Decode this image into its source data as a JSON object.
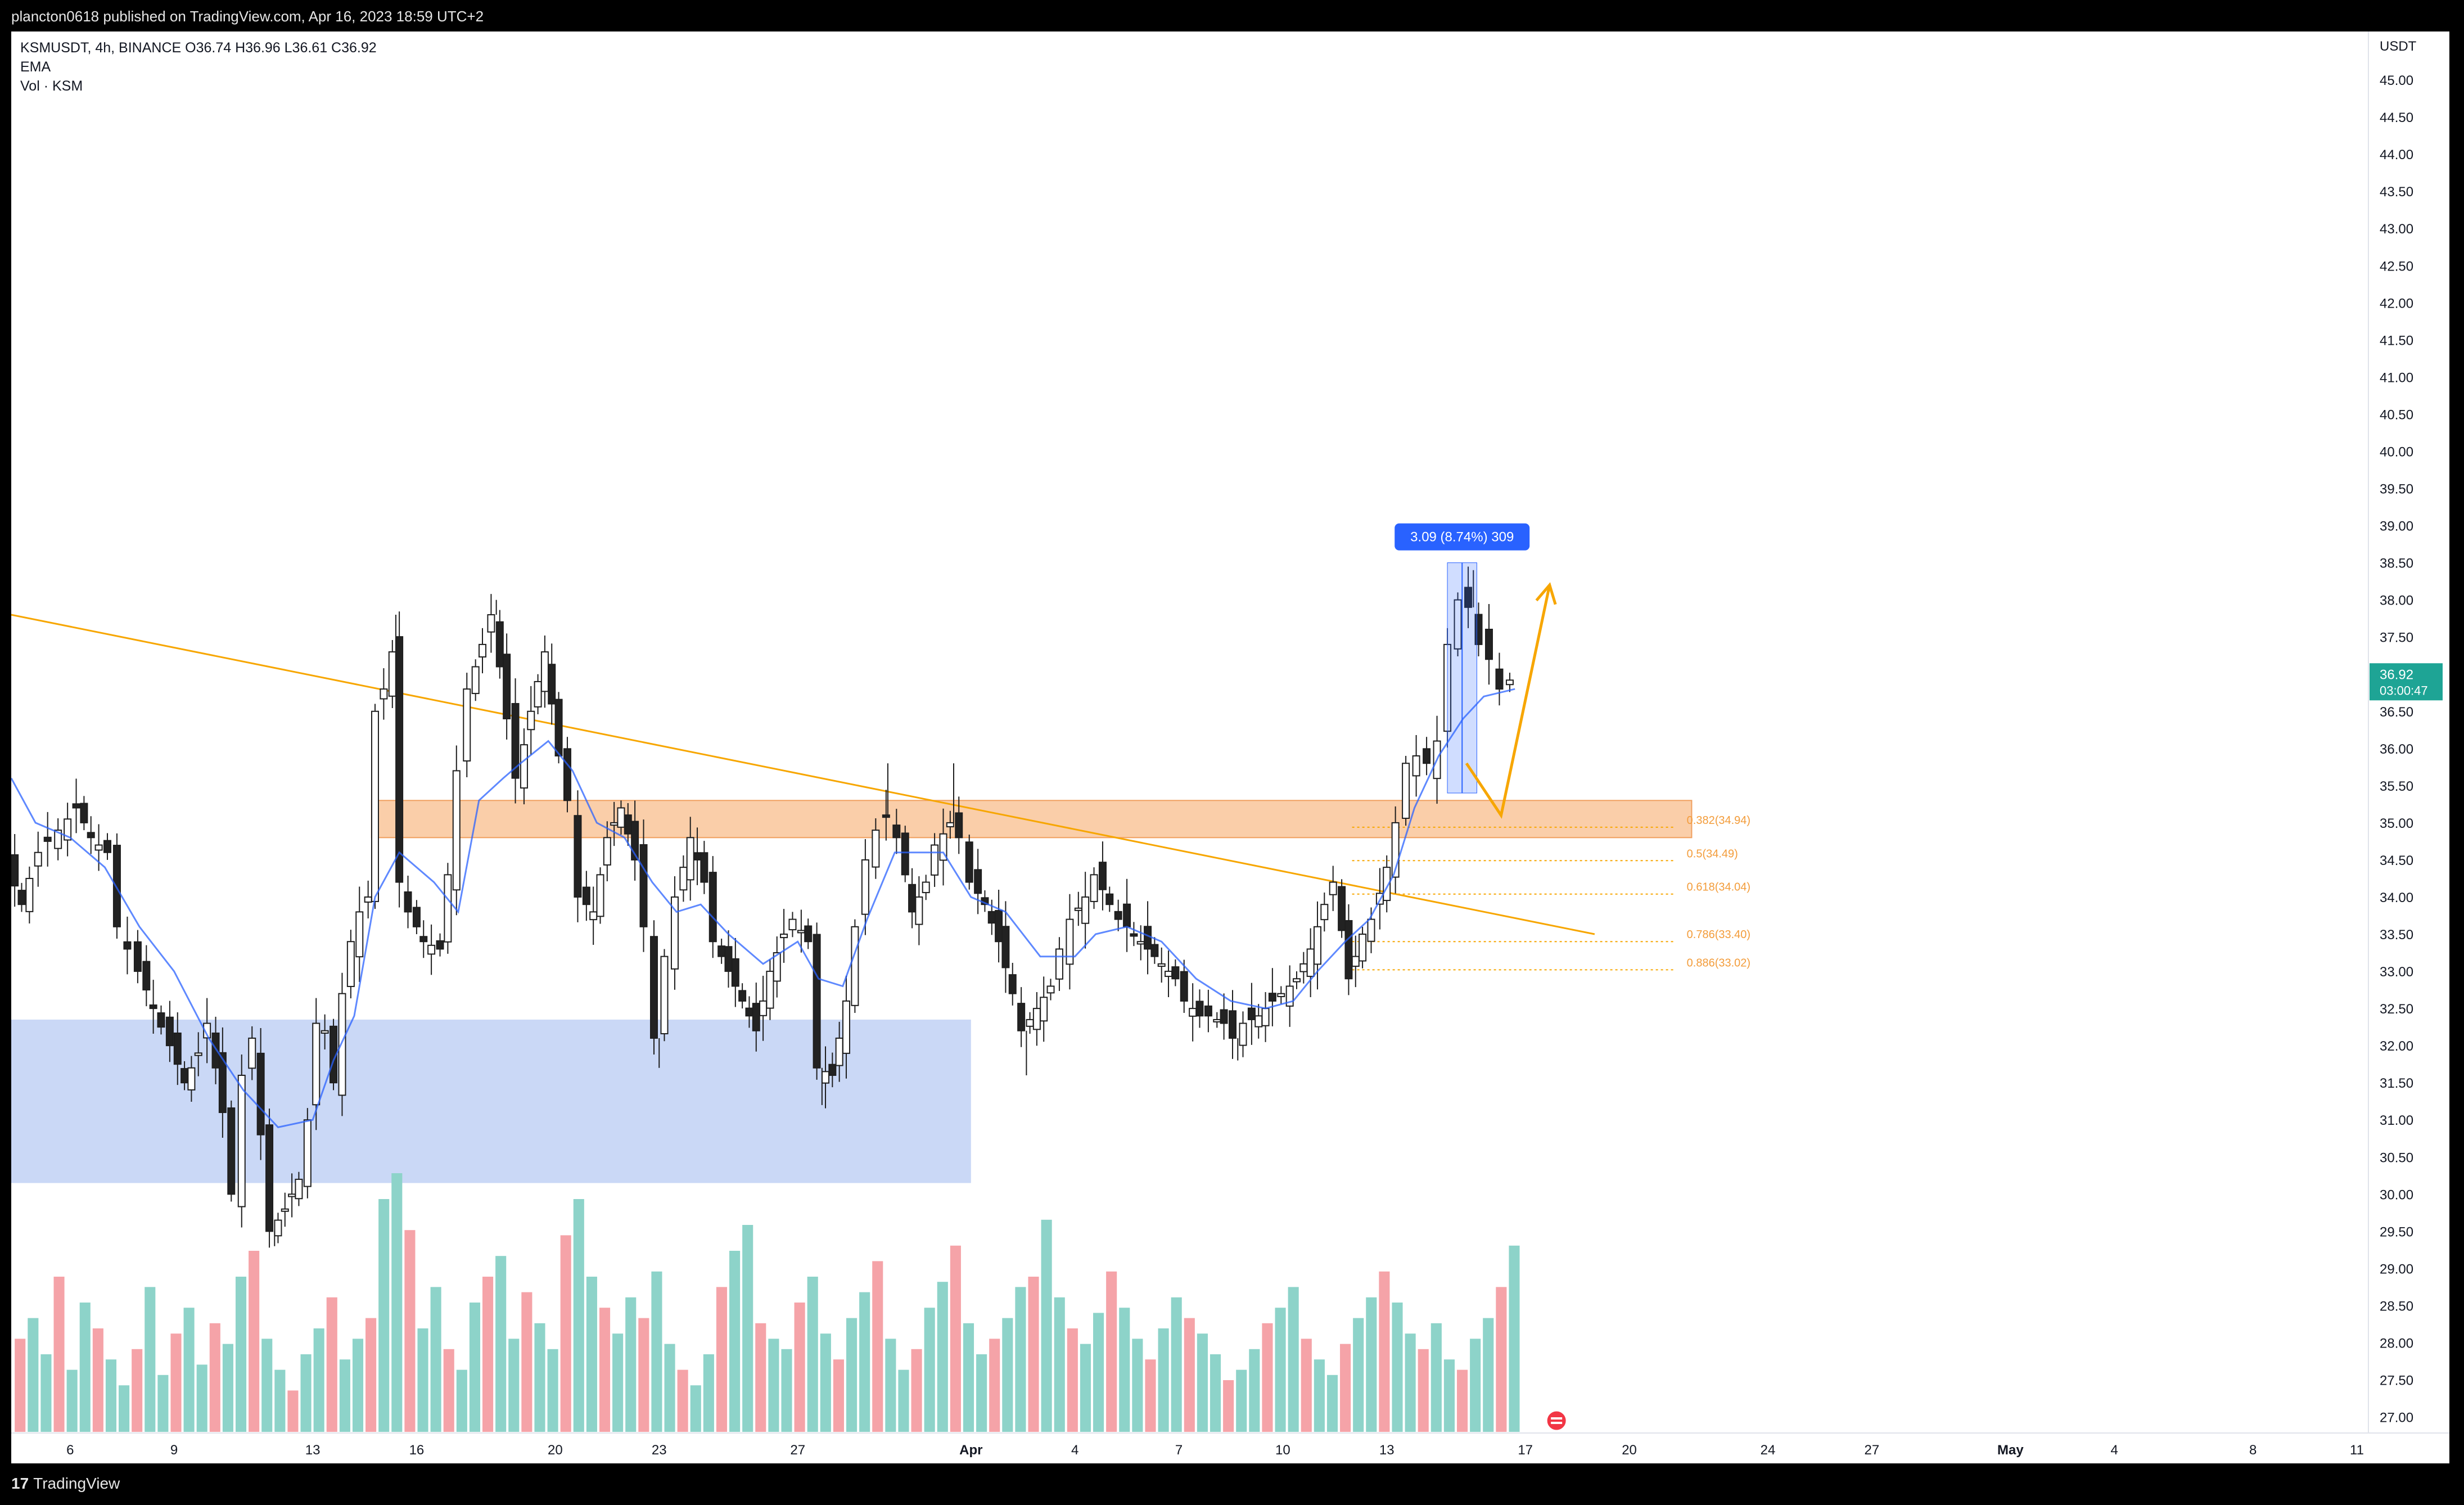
{
  "header": {
    "publish_text": "plancton0618 published on TradingView.com, Apr 16, 2023 18:59 UTC+2"
  },
  "legend": {
    "symbol_line": "KSMUSDT, 4h, BINANCE  O36.74  H36.96  L36.61  C36.92",
    "ema_label": "EMA",
    "vol_label": "Vol · KSM"
  },
  "footer": {
    "logo_text": "TradingView",
    "logo_mark": "17"
  },
  "colors": {
    "up": "#22ab94",
    "down": "#f23645",
    "vol_up": "#8dd3c9",
    "vol_down": "#f5a3a8",
    "ema": "#2962ff",
    "trend": "#f7a600",
    "zone_orange": "#f9c69a",
    "zone_blue": "#b3c8f2",
    "price_tag": "#1ea495"
  },
  "chart_data": {
    "type": "candlestick",
    "symbol": "KSMUSDT",
    "timeframe": "4h",
    "exchange": "BINANCE",
    "last_price": {
      "value": 36.92,
      "label": "36.92",
      "countdown": "03:00:47"
    },
    "y_axis": {
      "unit_label": "USDT",
      "range": [
        26.8,
        45.5
      ],
      "ticks": [
        "45.00",
        "44.50",
        "44.00",
        "43.50",
        "43.00",
        "42.50",
        "42.00",
        "41.50",
        "41.00",
        "40.50",
        "40.00",
        "39.50",
        "39.00",
        "38.50",
        "38.00",
        "37.50",
        "37.00",
        "36.50",
        "36.00",
        "35.50",
        "35.00",
        "34.50",
        "34.00",
        "33.50",
        "33.00",
        "32.50",
        "32.00",
        "31.50",
        "31.00",
        "30.50",
        "30.00",
        "29.50",
        "29.00",
        "28.50",
        "28.00",
        "27.50",
        "27.00"
      ]
    },
    "x_axis": {
      "ticks": [
        {
          "label": "6",
          "day": 6
        },
        {
          "label": "9",
          "day": 9
        },
        {
          "label": "13",
          "day": 13
        },
        {
          "label": "16",
          "day": 16
        },
        {
          "label": "20",
          "day": 20
        },
        {
          "label": "23",
          "day": 23
        },
        {
          "label": "27",
          "day": 27
        },
        {
          "label": "Apr",
          "day": 32
        },
        {
          "label": "4",
          "day": 35
        },
        {
          "label": "7",
          "day": 38
        },
        {
          "label": "10",
          "day": 41
        },
        {
          "label": "13",
          "day": 44
        },
        {
          "label": "17",
          "day": 48
        },
        {
          "label": "20",
          "day": 51
        },
        {
          "label": "24",
          "day": 55
        },
        {
          "label": "27",
          "day": 58
        },
        {
          "label": "May",
          "day": 62
        },
        {
          "label": "4",
          "day": 65
        },
        {
          "label": "8",
          "day": 69
        },
        {
          "label": "11",
          "day": 72
        }
      ],
      "day_range": [
        4.3,
        72.3
      ]
    },
    "price_path": [
      [
        4.3,
        34.4
      ],
      [
        4.7,
        33.9
      ],
      [
        5.2,
        34.6
      ],
      [
        5.8,
        34.9
      ],
      [
        6.3,
        35.2
      ],
      [
        6.7,
        34.8
      ],
      [
        7.2,
        34.6
      ],
      [
        7.5,
        33.6
      ],
      [
        8.1,
        33.0
      ],
      [
        8.5,
        32.5
      ],
      [
        9.0,
        32.0
      ],
      [
        9.4,
        31.5
      ],
      [
        9.8,
        31.9
      ],
      [
        10.1,
        32.3
      ],
      [
        10.5,
        31.1
      ],
      [
        10.8,
        30.0
      ],
      [
        11.1,
        31.6
      ],
      [
        11.4,
        32.1
      ],
      [
        11.6,
        30.8
      ],
      [
        11.9,
        29.5
      ],
      [
        12.3,
        29.8
      ],
      [
        12.7,
        30.2
      ],
      [
        13.0,
        31.0
      ],
      [
        13.2,
        32.3
      ],
      [
        13.5,
        32.2
      ],
      [
        13.7,
        31.5
      ],
      [
        14.0,
        32.7
      ],
      [
        14.2,
        33.4
      ],
      [
        14.5,
        33.8
      ],
      [
        14.7,
        34.0
      ],
      [
        14.9,
        36.5
      ],
      [
        15.2,
        36.8
      ],
      [
        15.4,
        37.3
      ],
      [
        15.6,
        34.2
      ],
      [
        15.9,
        33.8
      ],
      [
        16.3,
        33.4
      ],
      [
        16.8,
        33.3
      ],
      [
        17.0,
        34.3
      ],
      [
        17.3,
        35.7
      ],
      [
        17.6,
        36.8
      ],
      [
        18.0,
        37.4
      ],
      [
        18.3,
        37.8
      ],
      [
        18.7,
        36.4
      ],
      [
        19.0,
        35.6
      ],
      [
        19.4,
        36.5
      ],
      [
        19.8,
        37.3
      ],
      [
        20.2,
        35.9
      ],
      [
        20.5,
        35.3
      ],
      [
        20.8,
        34.0
      ],
      [
        21.2,
        33.8
      ],
      [
        21.6,
        34.8
      ],
      [
        22.0,
        35.2
      ],
      [
        22.4,
        34.5
      ],
      [
        22.7,
        33.6
      ],
      [
        23.0,
        32.1
      ],
      [
        23.3,
        33.2
      ],
      [
        23.6,
        34.0
      ],
      [
        24.0,
        34.8
      ],
      [
        24.4,
        34.2
      ],
      [
        24.7,
        33.4
      ],
      [
        25.1,
        33.0
      ],
      [
        25.5,
        32.6
      ],
      [
        25.9,
        32.2
      ],
      [
        26.3,
        33.0
      ],
      [
        26.7,
        33.5
      ],
      [
        27.0,
        33.7
      ],
      [
        27.4,
        33.4
      ],
      [
        27.7,
        31.7
      ],
      [
        28.1,
        31.6
      ],
      [
        28.5,
        32.6
      ],
      [
        28.8,
        33.6
      ],
      [
        29.1,
        34.5
      ],
      [
        29.4,
        34.9
      ],
      [
        29.7,
        35.1
      ],
      [
        30.0,
        34.8
      ],
      [
        30.4,
        33.8
      ],
      [
        30.8,
        34.2
      ],
      [
        31.1,
        34.7
      ],
      [
        31.5,
        35.0
      ],
      [
        31.8,
        34.8
      ],
      [
        32.1,
        34.2
      ],
      [
        32.5,
        33.9
      ],
      [
        32.9,
        33.4
      ],
      [
        33.3,
        32.7
      ],
      [
        33.6,
        32.2
      ],
      [
        34.0,
        32.5
      ],
      [
        34.4,
        32.8
      ],
      [
        34.7,
        33.3
      ],
      [
        35.0,
        33.7
      ],
      [
        35.4,
        34.0
      ],
      [
        35.7,
        34.3
      ],
      [
        36.1,
        33.9
      ],
      [
        36.4,
        33.7
      ],
      [
        36.8,
        33.5
      ],
      [
        37.2,
        33.3
      ],
      [
        37.6,
        33.1
      ],
      [
        38.0,
        32.9
      ],
      [
        38.3,
        32.6
      ],
      [
        38.7,
        32.4
      ],
      [
        39.0,
        32.4
      ],
      [
        39.4,
        32.3
      ],
      [
        39.7,
        32.1
      ],
      [
        40.0,
        32.3
      ],
      [
        40.4,
        32.4
      ],
      [
        40.8,
        32.6
      ],
      [
        41.1,
        32.7
      ],
      [
        41.5,
        32.9
      ],
      [
        41.9,
        33.3
      ],
      [
        42.3,
        33.9
      ],
      [
        42.6,
        34.2
      ],
      [
        43.0,
        32.9
      ],
      [
        43.4,
        33.5
      ],
      [
        43.7,
        33.7
      ],
      [
        44.1,
        34.4
      ],
      [
        44.4,
        35.0
      ],
      [
        44.7,
        35.8
      ],
      [
        45.0,
        35.9
      ],
      [
        45.3,
        35.8
      ],
      [
        45.6,
        36.1
      ],
      [
        45.9,
        37.4
      ],
      [
        46.2,
        38.0
      ],
      [
        46.5,
        37.9
      ],
      [
        46.8,
        37.4
      ],
      [
        47.1,
        37.2
      ],
      [
        47.4,
        36.8
      ],
      [
        47.7,
        36.92
      ]
    ],
    "ema_path": [
      [
        4.3,
        35.6
      ],
      [
        5.0,
        35.0
      ],
      [
        6.0,
        34.8
      ],
      [
        7.0,
        34.4
      ],
      [
        8.0,
        33.6
      ],
      [
        9.0,
        33.0
      ],
      [
        10.0,
        32.1
      ],
      [
        11.0,
        31.4
      ],
      [
        12.0,
        30.9
      ],
      [
        13.0,
        31.0
      ],
      [
        13.6,
        31.8
      ],
      [
        14.2,
        32.4
      ],
      [
        14.8,
        34.0
      ],
      [
        15.5,
        34.6
      ],
      [
        16.5,
        34.2
      ],
      [
        17.2,
        33.8
      ],
      [
        17.8,
        35.3
      ],
      [
        18.5,
        35.6
      ],
      [
        19.0,
        35.8
      ],
      [
        19.8,
        36.1
      ],
      [
        20.5,
        35.7
      ],
      [
        21.2,
        35.0
      ],
      [
        22.0,
        34.8
      ],
      [
        22.8,
        34.2
      ],
      [
        23.5,
        33.8
      ],
      [
        24.2,
        33.9
      ],
      [
        25.0,
        33.5
      ],
      [
        26.0,
        33.1
      ],
      [
        27.0,
        33.4
      ],
      [
        27.6,
        32.9
      ],
      [
        28.3,
        32.8
      ],
      [
        29.0,
        33.7
      ],
      [
        29.8,
        34.6
      ],
      [
        30.6,
        34.6
      ],
      [
        31.2,
        34.6
      ],
      [
        32.0,
        34.0
      ],
      [
        33.0,
        33.8
      ],
      [
        34.0,
        33.2
      ],
      [
        35.0,
        33.2
      ],
      [
        35.6,
        33.5
      ],
      [
        36.5,
        33.6
      ],
      [
        37.5,
        33.4
      ],
      [
        38.5,
        32.9
      ],
      [
        39.5,
        32.6
      ],
      [
        40.5,
        32.5
      ],
      [
        41.3,
        32.6
      ],
      [
        42.0,
        33.0
      ],
      [
        42.8,
        33.4
      ],
      [
        43.5,
        33.7
      ],
      [
        44.2,
        34.3
      ],
      [
        44.8,
        35.2
      ],
      [
        45.5,
        35.9
      ],
      [
        46.2,
        36.4
      ],
      [
        46.8,
        36.7
      ],
      [
        47.7,
        36.8
      ]
    ],
    "highs_lows": [
      {
        "day": 15.4,
        "high": 37.8
      },
      {
        "day": 18.3,
        "high": 38.0
      },
      {
        "day": 29.6,
        "high": 35.8
      },
      {
        "day": 31.5,
        "high": 35.8
      },
      {
        "day": 46.5,
        "high": 38.4
      },
      {
        "day": 11.9,
        "low": 29.3
      },
      {
        "day": 23.0,
        "low": 31.7
      },
      {
        "day": 27.7,
        "low": 31.2
      },
      {
        "day": 33.6,
        "low": 31.6
      },
      {
        "day": 39.7,
        "low": 31.8
      }
    ],
    "trendline": {
      "start": [
        4.3,
        37.8
      ],
      "end": [
        50.0,
        33.5
      ]
    },
    "zones": [
      {
        "kind": "resistance-orange",
        "day_range": [
          14.7,
          52.8
        ],
        "price_range": [
          34.8,
          35.3
        ]
      },
      {
        "kind": "support-blue",
        "day_range": [
          4.3,
          32.0
        ],
        "price_range": [
          30.15,
          32.35
        ]
      }
    ],
    "fib_levels": [
      {
        "label": "0.382(34.94)",
        "price": 34.94
      },
      {
        "label": "0.5(34.49)",
        "price": 34.49
      },
      {
        "label": "0.618(34.04)",
        "price": 34.04
      },
      {
        "label": "0.786(33.40)",
        "price": 33.4
      },
      {
        "label": "0.886(33.02)",
        "price": 33.02
      }
    ],
    "fib_day_range": [
      43.0,
      52.3
    ],
    "measure": {
      "label": "3.09 (8.74%) 309",
      "day_range": [
        45.75,
        46.6
      ],
      "price_range": [
        35.4,
        38.5
      ]
    },
    "projection": {
      "points": [
        [
          46.3,
          35.8
        ],
        [
          47.3,
          35.1
        ],
        [
          48.7,
          38.2
        ]
      ]
    },
    "volume": {
      "max_scale": 50,
      "bars_per_day": 6,
      "values": [
        18,
        22,
        15,
        30,
        12,
        25,
        20,
        14,
        9,
        16,
        28,
        11,
        19,
        24,
        13,
        21,
        17,
        30,
        35,
        18,
        12,
        8,
        15,
        20,
        26,
        14,
        18,
        22,
        45,
        50,
        39,
        20,
        28,
        16,
        12,
        25,
        30,
        34,
        18,
        27,
        21,
        16,
        38,
        45,
        30,
        24,
        19,
        26,
        22,
        31,
        17,
        12,
        9,
        15,
        28,
        35,
        40,
        21,
        18,
        16,
        25,
        30,
        19,
        14,
        22,
        27,
        33,
        18,
        12,
        16,
        24,
        29,
        36,
        21,
        15,
        18,
        22,
        28,
        30,
        41,
        26,
        20,
        17,
        23,
        31,
        24,
        18,
        14,
        20,
        26,
        22,
        19,
        15,
        10,
        12,
        16,
        21,
        24,
        28,
        18,
        14,
        11,
        17,
        22,
        26,
        31,
        25,
        19,
        16,
        21,
        14,
        12,
        18,
        22,
        28,
        36,
        30,
        24,
        19,
        15,
        12,
        17,
        21,
        25,
        29,
        33,
        27,
        20,
        15,
        12,
        18,
        23,
        28,
        31,
        34,
        27,
        22,
        17,
        14,
        19,
        24,
        30,
        36,
        48,
        40,
        32,
        25,
        20,
        15,
        18,
        22,
        27,
        33,
        25,
        19,
        14,
        11,
        15,
        19,
        24,
        28,
        34,
        45,
        38,
        29,
        22,
        16,
        12,
        9,
        14,
        18,
        23,
        27,
        31
      ]
    }
  }
}
